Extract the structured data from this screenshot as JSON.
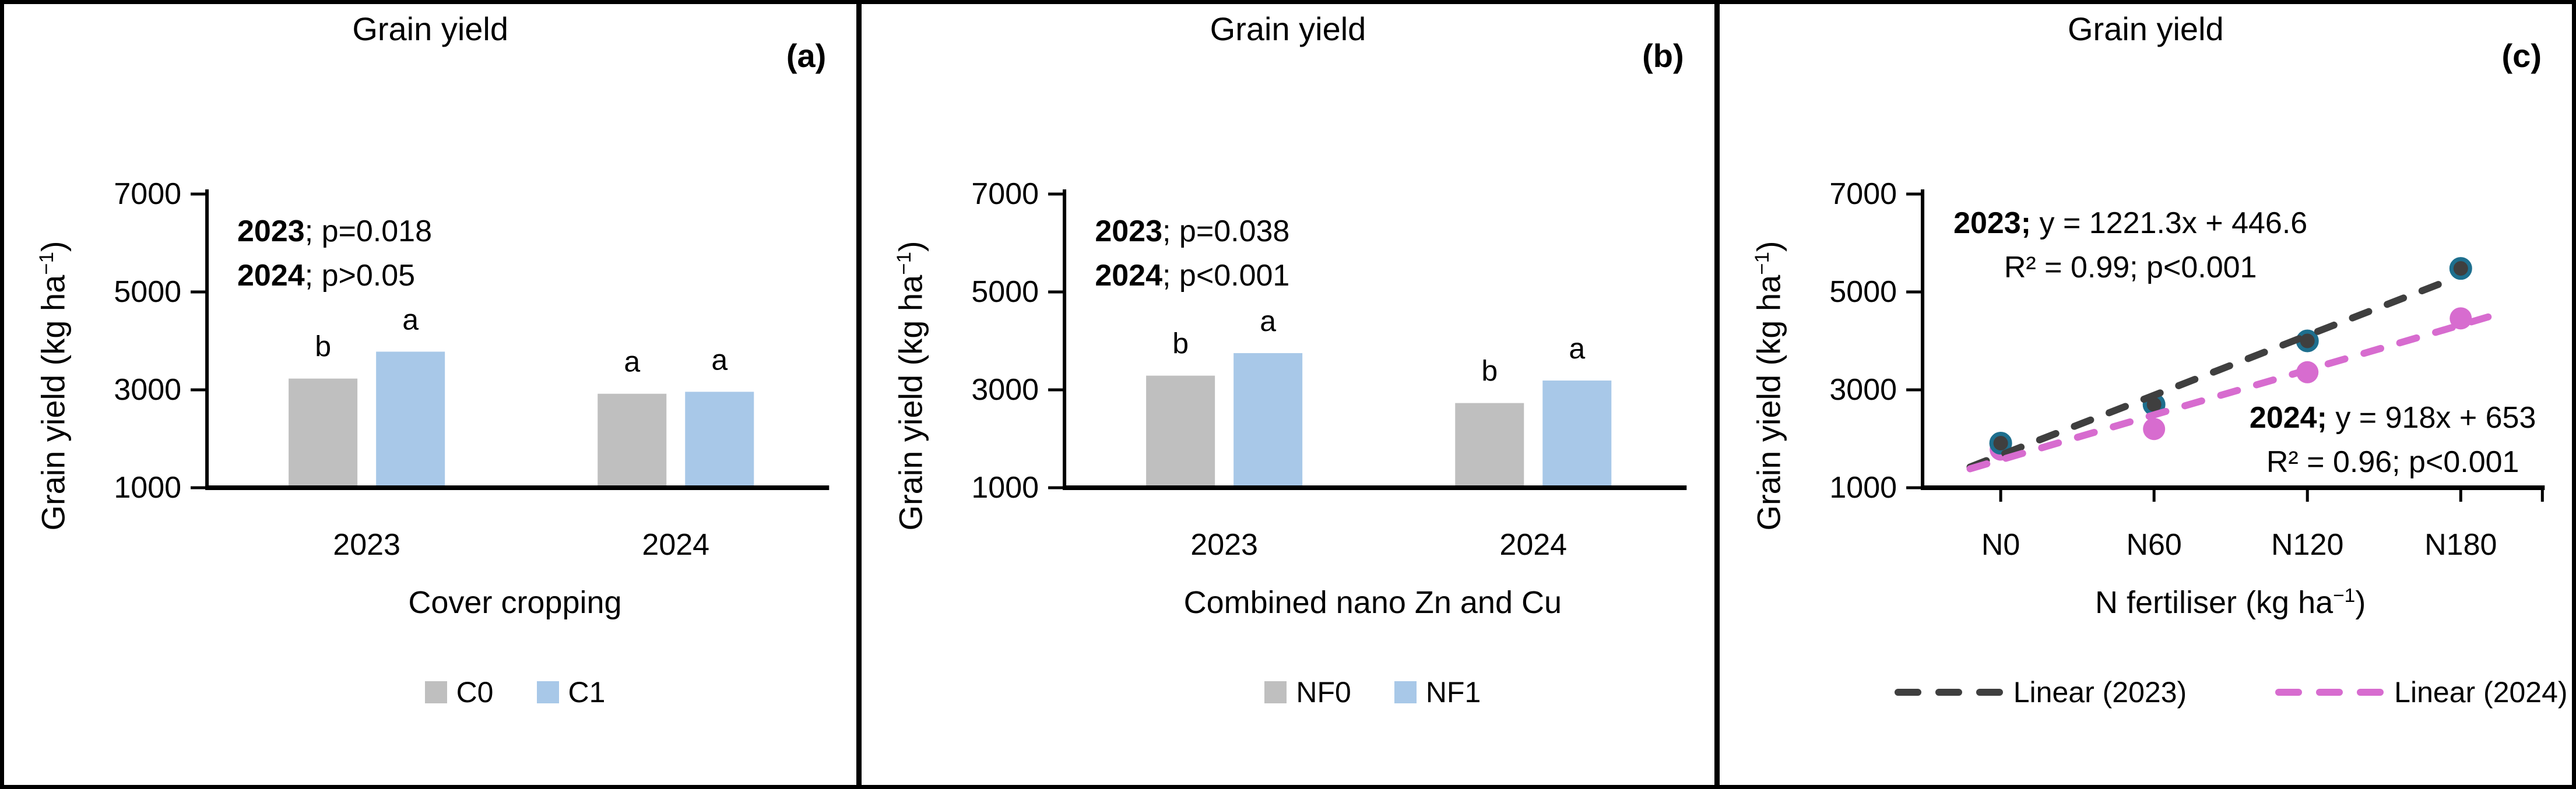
{
  "figure": {
    "background": "#ffffff",
    "border_color": "#000000"
  },
  "chart_data": [
    {
      "type": "bar",
      "panel_label": "(a)",
      "title": "Grain yield",
      "xlabel": "Cover cropping",
      "ylabel": "Grain yield (kg ha−1)",
      "ylabel_parts": {
        "pre": "Grain yield (kg ha",
        "sup": "−1",
        "post": ")"
      },
      "categories": [
        "2023",
        "2024"
      ],
      "series": [
        {
          "name": "C0",
          "color": "#bfbfbf",
          "values": [
            3230,
            2920
          ],
          "letters": [
            "b",
            "a"
          ]
        },
        {
          "name": "C1",
          "color": "#a8c8e8",
          "values": [
            3780,
            2960
          ],
          "letters": [
            "a",
            "a"
          ]
        }
      ],
      "annotation": {
        "l1b": "2023",
        "l1r": "; p=0.018",
        "l2b": "2024",
        "l2r": "; p>0.05"
      },
      "y_ticks": [
        7000,
        5000,
        3000,
        1000
      ],
      "ylim": [
        1000,
        7000
      ],
      "grid": false,
      "legend_position": "bottom"
    },
    {
      "type": "bar",
      "panel_label": "(b)",
      "title": "Grain yield",
      "xlabel": "Combined nano Zn and Cu",
      "ylabel": "Grain yield (kg ha−1)",
      "ylabel_parts": {
        "pre": "Grain yield (kg ha",
        "sup": "−1",
        "post": ")"
      },
      "categories": [
        "2023",
        "2024"
      ],
      "series": [
        {
          "name": "NF0",
          "color": "#bfbfbf",
          "values": [
            3290,
            2730
          ],
          "letters": [
            "b",
            "b"
          ]
        },
        {
          "name": "NF1",
          "color": "#a8c8e8",
          "values": [
            3750,
            3190
          ],
          "letters": [
            "a",
            "a"
          ]
        }
      ],
      "annotation": {
        "l1b": "2023",
        "l1r": "; p=0.038",
        "l2b": "2024",
        "l2r": "; p<0.001"
      },
      "y_ticks": [
        7000,
        5000,
        3000,
        1000
      ],
      "ylim": [
        1000,
        7000
      ],
      "grid": false,
      "legend_position": "bottom"
    },
    {
      "type": "scatter",
      "panel_label": "(c)",
      "title": "Grain yield",
      "xlabel": "N fertiliser (kg ha−1)",
      "xlabel_parts": {
        "pre": "N fertiliser (kg ha",
        "sup": "−1",
        "post": ")"
      },
      "ylabel": "Grain yield (kg ha−1)",
      "ylabel_parts": {
        "pre": "Grain yield (kg ha",
        "sup": "−1",
        "post": ")"
      },
      "categories": [
        "N0",
        "N60",
        "N120",
        "N180"
      ],
      "series": [
        {
          "name": "2023",
          "marker_color": "#3f3f3f",
          "marker_edge": "#1e6f8e",
          "values": [
            1910,
            2700,
            4000,
            5480
          ],
          "trend": {
            "label": "Linear (2023)",
            "slope": 1221.3,
            "intercept": 446.6,
            "color": "#3f3f3f"
          }
        },
        {
          "name": "2024",
          "marker_color": "#d76ccf",
          "marker_edge": "#d76ccf",
          "values": [
            1780,
            2200,
            3360,
            4460
          ],
          "trend": {
            "label": "Linear (2024)",
            "slope": 918,
            "intercept": 653,
            "color": "#d76ccf"
          }
        }
      ],
      "annotations": [
        {
          "l1b": "2023;",
          "l1r": " y = 1221.3x + 446.6",
          "l2": "R² = 0.99; p<0.001"
        },
        {
          "l1b": "2024;",
          "l1r": " y = 918x + 653",
          "l2": "R² = 0.96; p<0.001"
        }
      ],
      "y_ticks": [
        7000,
        5000,
        3000,
        1000
      ],
      "ylim": [
        1000,
        7000
      ],
      "grid": false,
      "legend_position": "bottom"
    }
  ]
}
